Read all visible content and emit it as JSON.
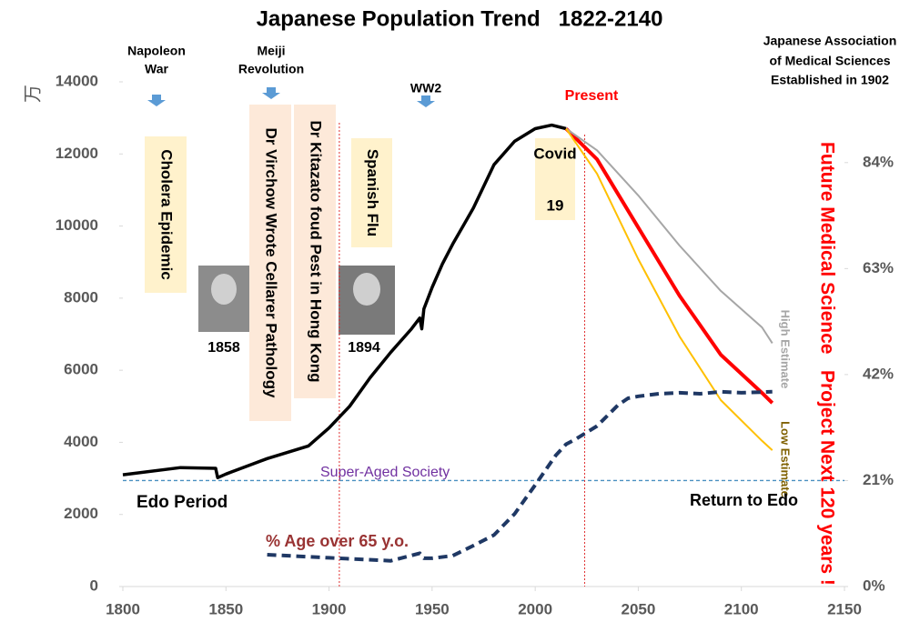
{
  "chart_data": {
    "type": "line",
    "title": "Japanese Population Trend   1822-2140",
    "ylabel": "万",
    "xlim": [
      1800,
      2150
    ],
    "xticks": [
      1800,
      1850,
      1900,
      1950,
      2000,
      2050,
      2100,
      2150
    ],
    "ylim": [
      0,
      14000
    ],
    "yticks": [
      0,
      2000,
      4000,
      6000,
      8000,
      10000,
      12000,
      14000
    ],
    "y2lim": [
      0,
      100
    ],
    "y2ticks": [
      {
        "value": 0,
        "label": "0%"
      },
      {
        "value": 21,
        "label": "21%"
      },
      {
        "value": 42,
        "label": "42%"
      },
      {
        "value": 63,
        "label": "63%"
      },
      {
        "value": 84,
        "label": "84%"
      }
    ],
    "series": [
      {
        "color": "#000000",
        "x": [
          1800,
          1828,
          1845,
          1846,
          1850,
          1870,
          1890,
          1900,
          1910,
          1920,
          1930,
          1940,
          1944,
          1945,
          1946,
          1950,
          1955,
          1960,
          1970,
          1980,
          1990,
          2000,
          2008,
          2015
        ],
        "values": [
          3100,
          3300,
          3280,
          3020,
          3120,
          3550,
          3900,
          4400,
          5000,
          5800,
          6500,
          7150,
          7450,
          7150,
          7700,
          8300,
          8950,
          9500,
          10500,
          11700,
          12350,
          12700,
          12800,
          12700
        ]
      },
      {
        "color": "#ff0000",
        "x": [
          2015,
          2030,
          2050,
          2070,
          2090,
          2110,
          2115
        ],
        "values": [
          12700,
          11850,
          9960,
          8070,
          6430,
          5370,
          5090
        ]
      },
      {
        "name": "High Estimate",
        "color": "#a6a6a6",
        "x": [
          2015,
          2030,
          2050,
          2070,
          2090,
          2110,
          2115
        ],
        "values": [
          12700,
          12100,
          10850,
          9460,
          8200,
          7190,
          6750
        ]
      },
      {
        "name": "Low Estimate",
        "color": "#ffc000",
        "x": [
          2015,
          2030,
          2050,
          2070,
          2090,
          2110,
          2115
        ],
        "values": [
          12700,
          11450,
          9080,
          6940,
          5170,
          4040,
          3780
        ]
      },
      {
        "name": "% Age over 65 y.o.",
        "color": "#1f3864",
        "axis": "y2",
        "dashed": true,
        "x": [
          1870,
          1900,
          1930,
          1944,
          1946,
          1950,
          1960,
          1970,
          1980,
          1990,
          2000,
          2010,
          2015,
          2020,
          2030,
          2040,
          2045,
          2050,
          2060,
          2070,
          2080,
          2090,
          2100,
          2115
        ],
        "values": [
          6.3,
          5.7,
          5.1,
          6.6,
          5.6,
          5.6,
          6.1,
          8.1,
          10.2,
          14.4,
          20.1,
          26,
          28.2,
          29.3,
          31.8,
          35.9,
          37.3,
          37.7,
          38.2,
          38.4,
          38.2,
          38.6,
          38.4,
          38.6
        ]
      }
    ],
    "reference_line": {
      "label": "Super-Aged Society",
      "value": 21,
      "axis": "y2"
    },
    "vertical_lines": [
      1905,
      2024
    ],
    "events": [
      [
        "Napoleon",
        "War"
      ],
      [
        "Meiji",
        "Revolution"
      ],
      [
        "WW2"
      ],
      [
        "Japanese Association",
        "of Medical Sciences",
        "Established in 1902"
      ]
    ],
    "boxes": [
      "Cholera Epidemic",
      "Dr Virchow Wrote Cellarer Pathology",
      "Dr Kitazato foud Pest in Hong Kong",
      "Spanish Flu"
    ],
    "covid_box": [
      "Covid",
      "19"
    ],
    "photo_years": [
      "1858",
      "1894"
    ],
    "notes": {
      "present": "Present",
      "edo": "Edo Period",
      "return": "Return to Edo",
      "future": "Future Medical Science   Project Next 120 years !"
    }
  }
}
